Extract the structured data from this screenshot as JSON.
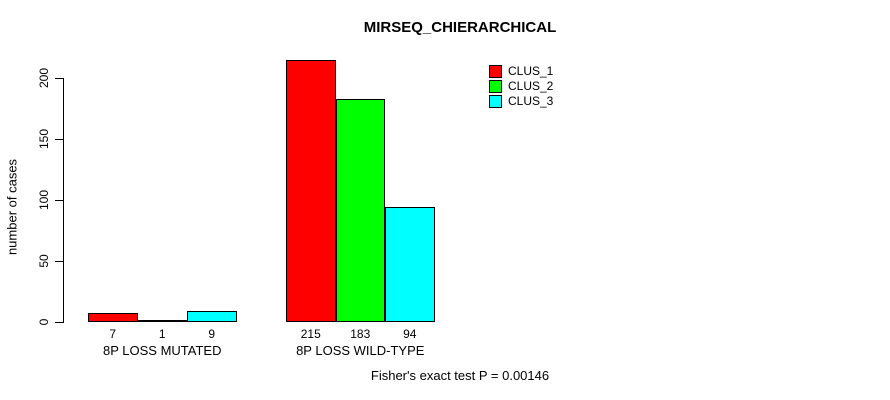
{
  "chart": {
    "title": "MIRSEQ_CHIERARCHICAL",
    "ylabel": "number of cases",
    "caption": "Fisher's exact test P = 0.00146"
  },
  "chart_data": {
    "type": "bar",
    "title": "MIRSEQ_CHIERARCHICAL",
    "xlabel": "",
    "ylabel": "number of cases",
    "categories": [
      "8P LOSS MUTATED",
      "8P LOSS WILD-TYPE"
    ],
    "series": [
      {
        "name": "CLUS_1",
        "color": "#FF0000",
        "values": [
          7,
          215
        ]
      },
      {
        "name": "CLUS_2",
        "color": "#00FF00",
        "values": [
          1,
          183
        ]
      },
      {
        "name": "CLUS_3",
        "color": "#00FFFF",
        "values": [
          9,
          94
        ]
      }
    ],
    "yticks": [
      0,
      50,
      100,
      150,
      200
    ],
    "ylim": [
      0,
      220
    ],
    "grid": false,
    "bar_value_labels": true,
    "legend_position": "top-right",
    "legend": [
      "CLUS_1",
      "CLUS_2",
      "CLUS_3"
    ],
    "annotation": "Fisher's exact test P = 0.00146"
  }
}
